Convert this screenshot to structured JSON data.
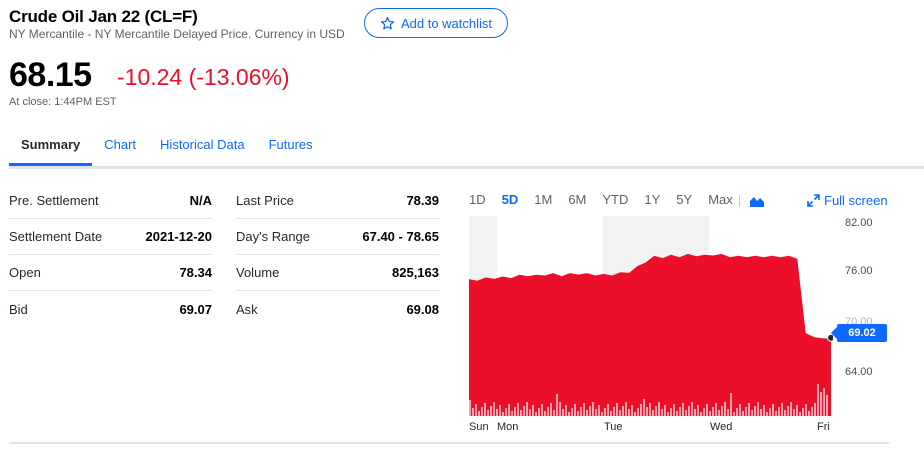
{
  "header": {
    "title": "Crude Oil Jan 22 (CL=F)",
    "subtitle": "NY Mercantile - NY Mercantile Delayed Price. Currency in USD",
    "watchlist_label": "Add to watchlist",
    "price": "68.15",
    "change": "-10.24 (-13.06%)",
    "close_time": "At close: 1:44PM EST"
  },
  "tabs": [
    {
      "label": "Summary",
      "active": true
    },
    {
      "label": "Chart"
    },
    {
      "label": "Historical Data"
    },
    {
      "label": "Futures"
    }
  ],
  "table_left": [
    {
      "label": "Pre. Settlement",
      "value": "N/A"
    },
    {
      "label": "Settlement Date",
      "value": "2021-12-20"
    },
    {
      "label": "Open",
      "value": "78.34"
    },
    {
      "label": "Bid",
      "value": "69.07"
    }
  ],
  "table_right": [
    {
      "label": "Last Price",
      "value": "78.39"
    },
    {
      "label": "Day's Range",
      "value": "67.40 - 78.65"
    },
    {
      "label": "Volume",
      "value": "825,163"
    },
    {
      "label": "Ask",
      "value": "69.08"
    }
  ],
  "chart_controls": {
    "ranges": [
      "1D",
      "5D",
      "1M",
      "6M",
      "YTD",
      "1Y",
      "5Y",
      "Max"
    ],
    "active_range": "5D",
    "fullscreen_label": "Full screen",
    "chart_type_icon": "mountain-chart-icon"
  },
  "chart_data": {
    "type": "area",
    "x_labels": [
      "Sun",
      "Mon",
      "Tue",
      "Wed",
      "Fri"
    ],
    "y_ticks": [
      "82.00",
      "76.00",
      "70.00",
      "64.00"
    ],
    "ylim": [
      60,
      83
    ],
    "current_price_label": "69.02",
    "series": [
      {
        "values": [
          75.6,
          75.7,
          75.8,
          75.9,
          75.9,
          76.0,
          76.1,
          76.2,
          76.1,
          76.3,
          76.3,
          76.2,
          76.3,
          76.4,
          76.3,
          76.3,
          76.2,
          76.3,
          76.4,
          76.6,
          77.1,
          77.8,
          78.3,
          78.3,
          78.4,
          78.4,
          78.5,
          78.5,
          78.4,
          78.6,
          78.5,
          78.4,
          78.3,
          78.4,
          78.3,
          78.4,
          78.3,
          78.4,
          78.3,
          78.2,
          69.4,
          69.2,
          68.8,
          69.0
        ]
      }
    ],
    "color": "#eb0f29",
    "volume_color": "#f4a4ae"
  }
}
